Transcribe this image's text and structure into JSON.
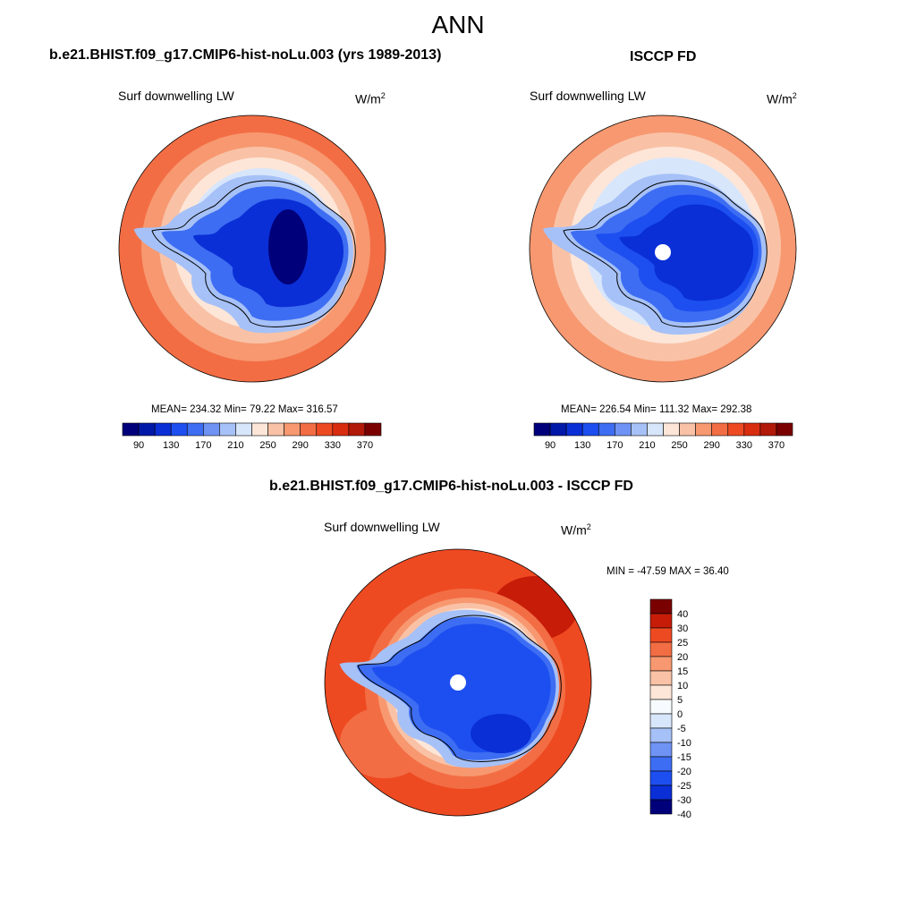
{
  "main_title": "ANN",
  "colors": {
    "abs_scale": [
      "#00007a",
      "#0018a8",
      "#0a2fd6",
      "#1d4ff0",
      "#3d6df2",
      "#6e93f4",
      "#a6c1f7",
      "#d8e6fb",
      "#fde6d8",
      "#f9c2a6",
      "#f79870",
      "#f36d44",
      "#ee4a22",
      "#d92d10",
      "#b21908",
      "#7a0000"
    ],
    "diff_scale": [
      "#00007a",
      "#0a2fd6",
      "#1d4ff0",
      "#3d6df2",
      "#6e93f4",
      "#a6c1f7",
      "#d8e6fb",
      "#f7fbff",
      "#fde6d8",
      "#f9c2a6",
      "#f79870",
      "#f36d44",
      "#ee4a22",
      "#c61c08",
      "#7a0000"
    ],
    "coast": "#000000",
    "missing": "#ffffff"
  },
  "panels": [
    {
      "id": "model",
      "title": "b.e21.BHIST.f09_g17.CMIP6-hist-noLu.003 (yrs 1989-2013)",
      "variable": "Surf downwelling LW",
      "units_base": "W/m",
      "units_exp": "2",
      "stats": "MEAN= 234.32  Min=  79.22  Max= 316.57",
      "colorbar_ticks": [
        "90",
        "130",
        "170",
        "210",
        "250",
        "290",
        "330",
        "370"
      ]
    },
    {
      "id": "obs",
      "title": "ISCCP FD",
      "variable": "Surf downwelling LW",
      "units_base": "W/m",
      "units_exp": "2",
      "stats": "MEAN= 226.54  Min= 111.32  Max= 292.38",
      "colorbar_ticks": [
        "90",
        "130",
        "170",
        "210",
        "250",
        "290",
        "330",
        "370"
      ]
    },
    {
      "id": "diff",
      "title": "b.e21.BHIST.f09_g17.CMIP6-hist-noLu.003 - ISCCP FD",
      "variable": "Surf downwelling LW",
      "units_base": "W/m",
      "units_exp": "2",
      "stats": "MIN = -47.59 MAX =  36.40",
      "colorbar_ticks": [
        "40",
        "30",
        "25",
        "20",
        "15",
        "10",
        "5",
        "0",
        "-5",
        "-10",
        "-15",
        "-20",
        "-25",
        "-30",
        "-40"
      ]
    }
  ]
}
